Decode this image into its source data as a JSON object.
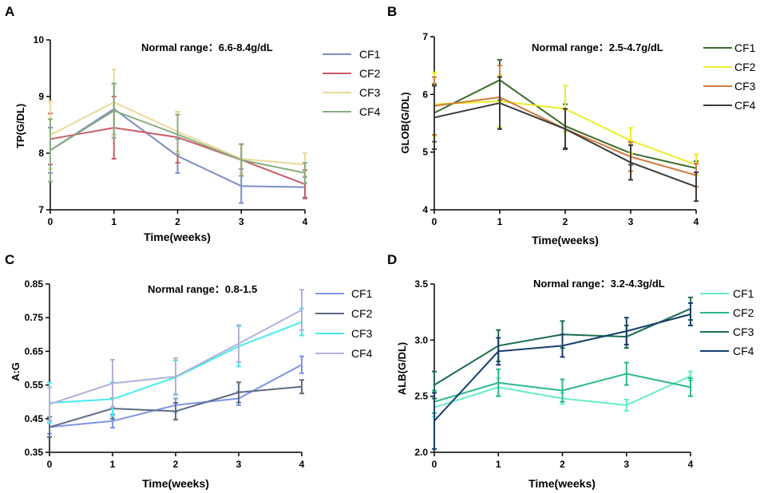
{
  "chart_data": [
    {
      "panel": "A",
      "type": "line",
      "xlabel": "Time(weeks)",
      "ylabel": "TP(G/DL)",
      "annotation": "Normal range：6.6-8.4g/dL",
      "x": [
        0,
        1,
        2,
        3,
        4
      ],
      "xticks": [
        "0",
        "1",
        "2",
        "3",
        "4"
      ],
      "ylim": [
        7,
        10
      ],
      "yticks": [
        "7",
        "8",
        "9",
        "10"
      ],
      "ytick_values": [
        7,
        8,
        9,
        10
      ],
      "series": [
        {
          "name": "CF1",
          "color": "#7b8ec4",
          "values": [
            8.05,
            8.78,
            7.95,
            7.42,
            7.4
          ],
          "err": [
            0.4,
            0.45,
            0.3,
            0.3,
            0.18
          ]
        },
        {
          "name": "CF2",
          "color": "#cb5b66",
          "values": [
            8.25,
            8.45,
            8.28,
            7.88,
            7.45
          ],
          "err": [
            0.45,
            0.55,
            0.45,
            0.28,
            0.25
          ]
        },
        {
          "name": "CF3",
          "color": "#ecd898",
          "values": [
            8.32,
            8.9,
            8.38,
            7.9,
            7.8
          ],
          "err": [
            0.6,
            0.58,
            0.35,
            0.25,
            0.2
          ]
        },
        {
          "name": "CF4",
          "color": "#88ad80",
          "values": [
            8.05,
            8.75,
            8.33,
            7.88,
            7.65
          ],
          "err": [
            0.55,
            0.48,
            0.35,
            0.28,
            0.18
          ]
        }
      ]
    },
    {
      "panel": "B",
      "type": "line",
      "xlabel": "Time(weeks)",
      "ylabel": "GLOB(G/DL)",
      "annotation": "Normal range：2.5-4.7g/dL",
      "x": [
        0,
        1,
        2,
        3,
        4
      ],
      "xticks": [
        "0",
        "1",
        "2",
        "3",
        "4"
      ],
      "ylim": [
        4,
        7
      ],
      "yticks": [
        "4",
        "5",
        "6",
        "7"
      ],
      "ytick_values": [
        4,
        5,
        6,
        7
      ],
      "series": [
        {
          "name": "CF1",
          "color": "#3d6b2a",
          "values": [
            5.68,
            6.25,
            5.45,
            4.98,
            4.72
          ],
          "err": [
            0.5,
            0.35,
            0.38,
            0.2,
            0.12
          ]
        },
        {
          "name": "CF2",
          "color": "#ecec2a",
          "values": [
            5.83,
            5.88,
            5.75,
            5.2,
            4.78
          ],
          "err": [
            0.55,
            0.45,
            0.4,
            0.22,
            0.18
          ]
        },
        {
          "name": "CF3",
          "color": "#d27a3e",
          "values": [
            5.8,
            5.95,
            5.4,
            4.92,
            4.6
          ],
          "err": [
            0.5,
            0.55,
            0.35,
            0.25,
            0.2
          ]
        },
        {
          "name": "CF4",
          "color": "#3b3b3b",
          "values": [
            5.6,
            5.85,
            5.4,
            4.82,
            4.4
          ],
          "err": [
            0.55,
            0.45,
            0.35,
            0.3,
            0.25
          ]
        }
      ]
    },
    {
      "panel": "C",
      "type": "line",
      "xlabel": "Time(weeks)",
      "ylabel": "A:G",
      "annotation": "Normal range：0.8-1.5",
      "x": [
        0,
        1,
        2,
        3,
        4
      ],
      "xticks": [
        "0",
        "1",
        "2",
        "3",
        "4"
      ],
      "ylim": [
        0.35,
        0.85
      ],
      "yticks": [
        "0.35",
        "0.45",
        "0.55",
        "0.65",
        "0.75",
        "0.85"
      ],
      "ytick_values": [
        0.35,
        0.45,
        0.55,
        0.65,
        0.75,
        0.85
      ],
      "series": [
        {
          "name": "CF1",
          "color": "#7e93e6",
          "values": [
            0.425,
            0.443,
            0.49,
            0.51,
            0.61
          ],
          "err": [
            0.02,
            0.02,
            0.02,
            0.02,
            0.025
          ]
        },
        {
          "name": "CF2",
          "color": "#5e6b85",
          "values": [
            0.425,
            0.48,
            0.472,
            0.528,
            0.545
          ],
          "err": [
            0.03,
            0.03,
            0.025,
            0.03,
            0.02
          ]
        },
        {
          "name": "CF3",
          "color": "#44ecec",
          "values": [
            0.497,
            0.508,
            0.573,
            0.665,
            0.737
          ],
          "err": [
            0.06,
            0.05,
            0.05,
            0.06,
            0.04
          ]
        },
        {
          "name": "CF4",
          "color": "#b0b1d8",
          "values": [
            0.493,
            0.555,
            0.575,
            0.673,
            0.773
          ],
          "err": [
            0.05,
            0.07,
            0.055,
            0.055,
            0.06
          ]
        }
      ]
    },
    {
      "panel": "D",
      "type": "line",
      "xlabel": "Time(weeks)",
      "ylabel": "ALB(G/DL)",
      "annotation": "Normal range：3.2-4.3g/dL",
      "x": [
        0,
        1,
        2,
        3,
        4
      ],
      "xticks": [
        "0",
        "1",
        "2",
        "3",
        "4"
      ],
      "ylim": [
        2.0,
        3.5
      ],
      "yticks": [
        "2.0",
        "2.5",
        "3.0",
        "3.5"
      ],
      "ytick_values": [
        2.0,
        2.5,
        3.0,
        3.5
      ],
      "series": [
        {
          "name": "CF1",
          "color": "#66ecc8",
          "values": [
            2.4,
            2.58,
            2.48,
            2.42,
            2.68
          ],
          "err": [
            0.08,
            0.08,
            0.05,
            0.05,
            0.04
          ]
        },
        {
          "name": "CF2",
          "color": "#2ab88c",
          "values": [
            2.45,
            2.62,
            2.55,
            2.7,
            2.58
          ],
          "err": [
            0.1,
            0.12,
            0.1,
            0.1,
            0.08
          ]
        },
        {
          "name": "CF3",
          "color": "#1a6e4e",
          "values": [
            2.6,
            2.95,
            3.05,
            3.03,
            3.28
          ],
          "err": [
            0.12,
            0.14,
            0.12,
            0.1,
            0.1
          ]
        },
        {
          "name": "CF4",
          "color": "#173f6e",
          "values": [
            2.28,
            2.9,
            2.95,
            3.08,
            3.23
          ],
          "err": [
            0.25,
            0.12,
            0.1,
            0.12,
            0.1
          ]
        }
      ]
    }
  ]
}
